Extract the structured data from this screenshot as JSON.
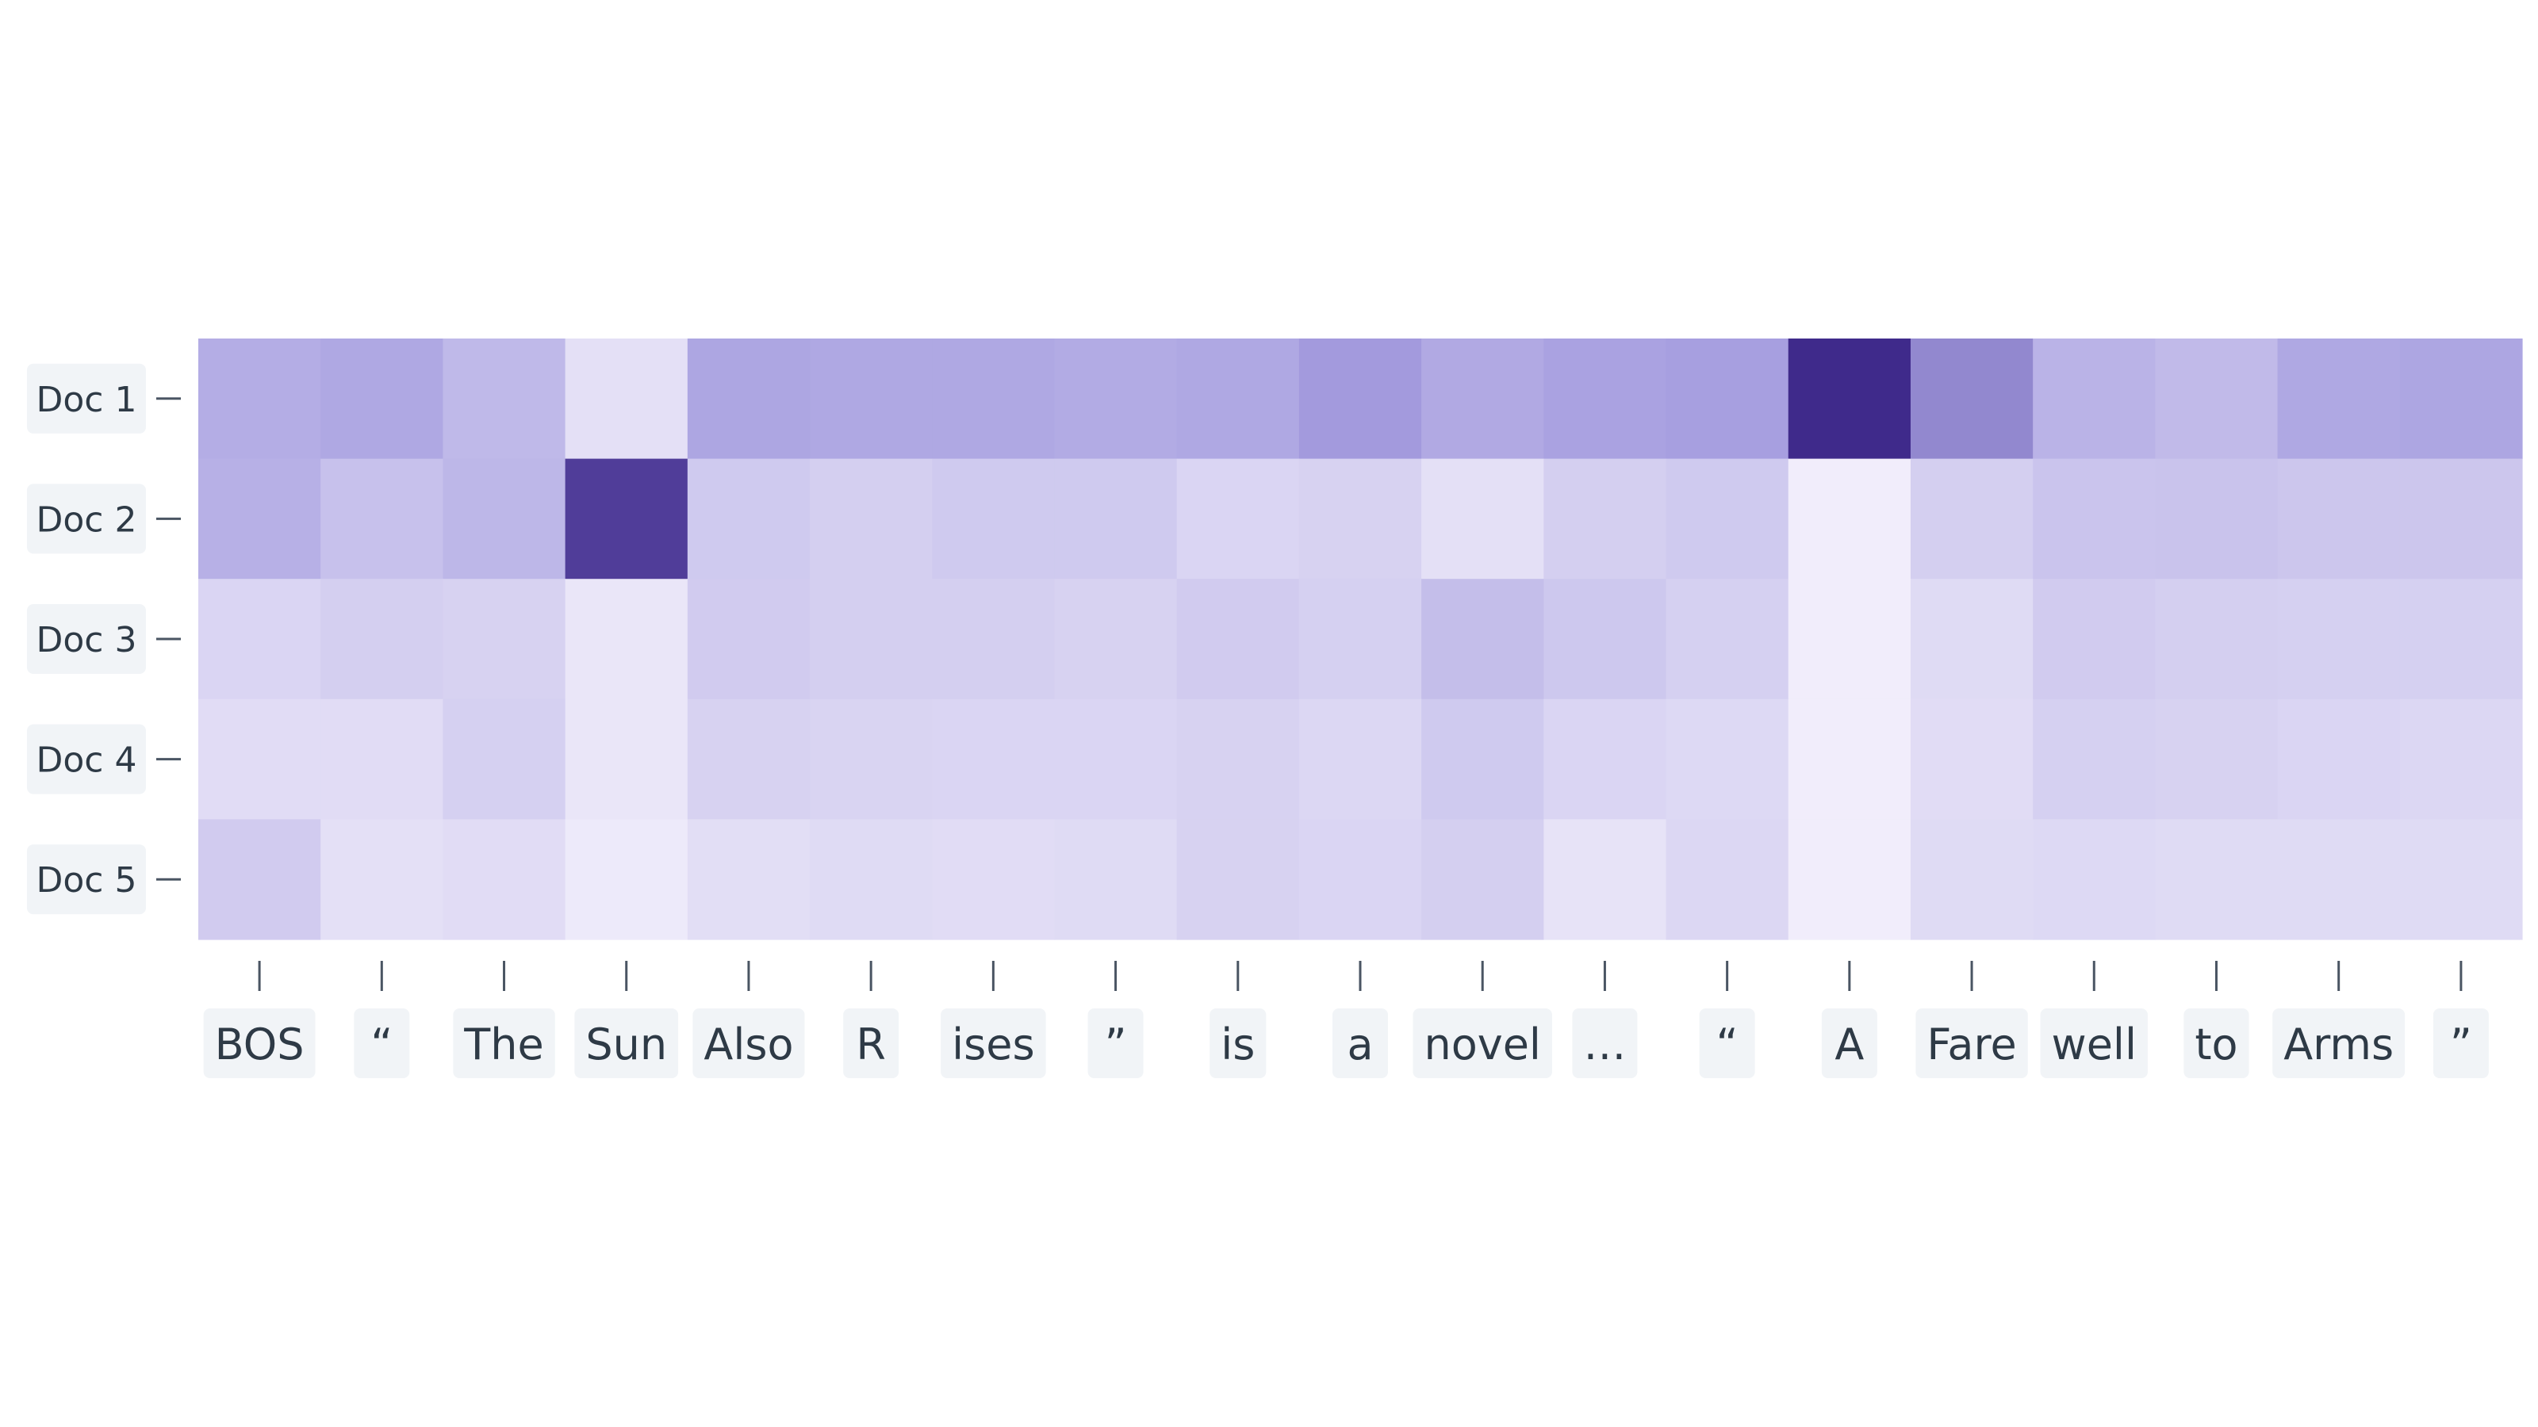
{
  "chart_data": {
    "type": "heatmap",
    "x": [
      "BOS",
      "“",
      "The",
      "Sun",
      "Also",
      "R",
      "ises",
      "”",
      "is",
      "a",
      "novel",
      "…",
      "“",
      "A",
      "Fare",
      "well",
      "to",
      "Arms",
      "”"
    ],
    "y": [
      "Doc 1",
      "Doc 2",
      "Doc 3",
      "Doc 4",
      "Doc 5"
    ],
    "values": [
      [
        0.42,
        0.45,
        0.35,
        0.12,
        0.46,
        0.45,
        0.45,
        0.43,
        0.45,
        0.52,
        0.44,
        0.48,
        0.5,
        1.0,
        0.6,
        0.38,
        0.34,
        0.45,
        0.46
      ],
      [
        0.4,
        0.3,
        0.36,
        0.92,
        0.25,
        0.22,
        0.25,
        0.25,
        0.18,
        0.2,
        0.12,
        0.22,
        0.25,
        0.04,
        0.22,
        0.28,
        0.29,
        0.27,
        0.27
      ],
      [
        0.18,
        0.22,
        0.2,
        0.08,
        0.24,
        0.22,
        0.22,
        0.2,
        0.24,
        0.21,
        0.32,
        0.26,
        0.21,
        0.04,
        0.15,
        0.24,
        0.22,
        0.21,
        0.21
      ],
      [
        0.14,
        0.14,
        0.21,
        0.08,
        0.2,
        0.19,
        0.18,
        0.18,
        0.2,
        0.17,
        0.25,
        0.18,
        0.16,
        0.04,
        0.14,
        0.21,
        0.2,
        0.18,
        0.17
      ],
      [
        0.24,
        0.12,
        0.14,
        0.06,
        0.13,
        0.15,
        0.14,
        0.15,
        0.2,
        0.18,
        0.22,
        0.1,
        0.17,
        0.04,
        0.15,
        0.16,
        0.15,
        0.15,
        0.15
      ]
    ],
    "color_scale": {
      "low": "#f7f4fd",
      "mid": "#a79fe0",
      "high": "#3f2a8b"
    },
    "legend": "none"
  }
}
